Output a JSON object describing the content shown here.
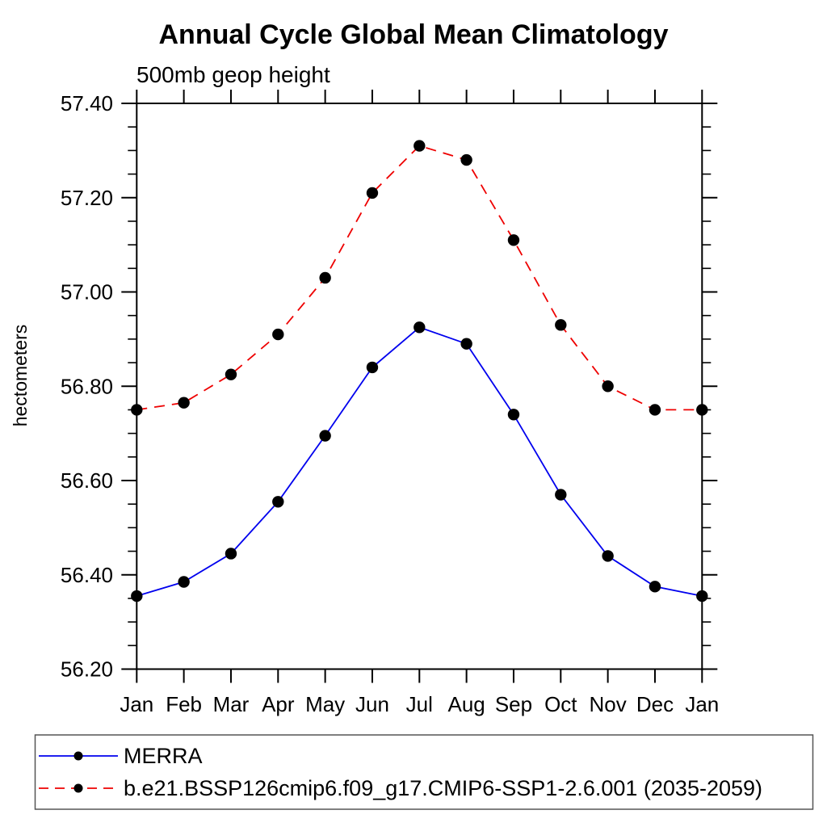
{
  "chart_data": {
    "type": "line",
    "title": "Annual Cycle Global Mean Climatology",
    "subtitle": "500mb geop height",
    "xlabel": "",
    "ylabel": "hectometers",
    "categories": [
      "Jan",
      "Feb",
      "Mar",
      "Apr",
      "May",
      "Jun",
      "Jul",
      "Aug",
      "Sep",
      "Oct",
      "Nov",
      "Dec",
      "Jan"
    ],
    "series": [
      {
        "name": "MERRA",
        "color": "#0000ee",
        "line_style": "solid",
        "marker": "filled-circle",
        "marker_color": "#000000",
        "values": [
          56.355,
          56.385,
          56.445,
          56.555,
          56.695,
          56.84,
          56.925,
          56.89,
          56.74,
          56.57,
          56.44,
          56.375,
          56.355
        ]
      },
      {
        "name": "b.e21.BSSP126cmip6.f09_g17.CMIP6-SSP1-2.6.001 (2035-2059)",
        "color": "#ee0000",
        "line_style": "dashed",
        "marker": "filled-circle",
        "marker_color": "#000000",
        "values": [
          56.75,
          56.765,
          56.825,
          56.91,
          57.03,
          57.21,
          57.31,
          57.28,
          57.11,
          56.93,
          56.8,
          56.75,
          56.75
        ]
      }
    ],
    "ylim": [
      56.2,
      57.4
    ],
    "ytick_step": 0.2,
    "yminor_step": 0.05,
    "ytick_labels": [
      "56.20",
      "56.40",
      "56.60",
      "56.80",
      "57.00",
      "57.20",
      "57.40"
    ],
    "grid": false,
    "legend_position": "bottom-left-box",
    "axis_color": "#000000",
    "legend_border_color": "#555555"
  }
}
